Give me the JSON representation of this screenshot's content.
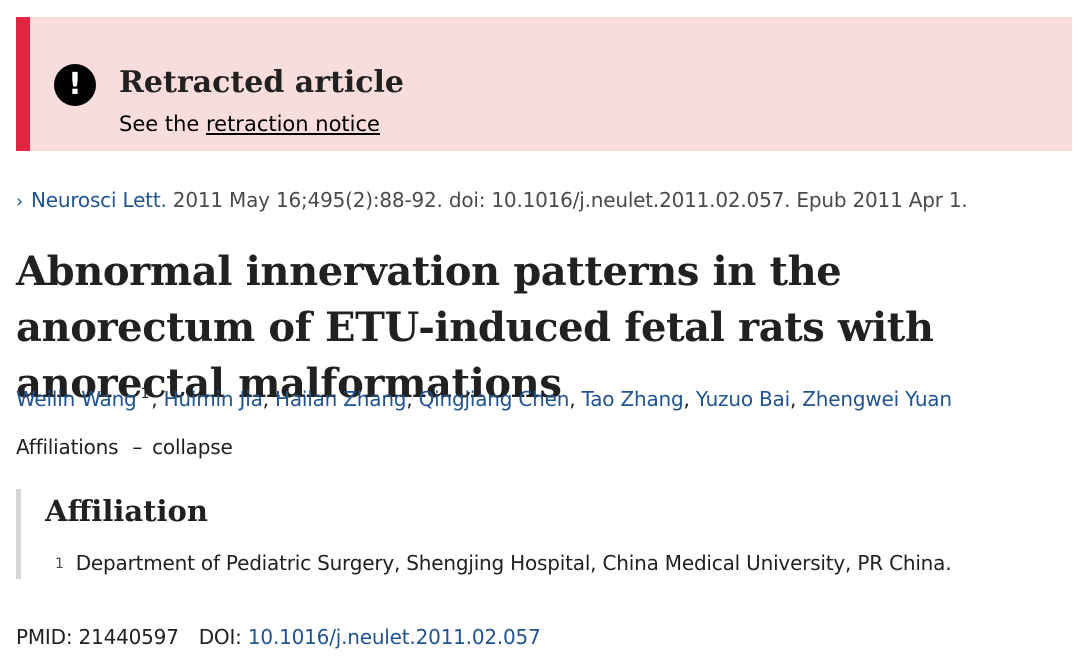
{
  "retraction": {
    "icon": "exclamation-circle-icon",
    "title": "Retracted article",
    "prefix": "See the ",
    "link_text": "retraction notice"
  },
  "citation": {
    "chevron": "›",
    "journal": "Neurosci Lett.",
    "details": " 2011 May 16;495(2):88-92. doi: 10.1016/j.neulet.2011.02.057. Epub 2011 Apr 1."
  },
  "article": {
    "title": "Abnormal innervation patterns in the anorectum of ETU-induced fetal rats with anorectal malformations"
  },
  "authors": [
    {
      "name": "Weilin Wang",
      "affiliation_ref": "1"
    },
    {
      "name": "Huimin Jia"
    },
    {
      "name": "Hailan Zhang"
    },
    {
      "name": "Qingjiang Chen"
    },
    {
      "name": "Tao Zhang"
    },
    {
      "name": "Yuzuo Bai"
    },
    {
      "name": "Zhengwei Yuan"
    }
  ],
  "affiliations_toggle": {
    "label": "Affiliations",
    "dash": "–",
    "action": "collapse"
  },
  "affiliation_section": {
    "heading": "Affiliation",
    "items": [
      {
        "num": "1",
        "text": "Department of Pediatric Surgery, Shengjing Hospital, China Medical University, PR China."
      }
    ]
  },
  "identifiers": {
    "pmid_label": "PMID:",
    "pmid": "21440597",
    "doi_label": "DOI:",
    "doi": "10.1016/j.neulet.2011.02.057"
  },
  "colors": {
    "link": "#205493",
    "retraction_bg": "#f9dcdc",
    "retraction_bar": "#e0253f"
  }
}
